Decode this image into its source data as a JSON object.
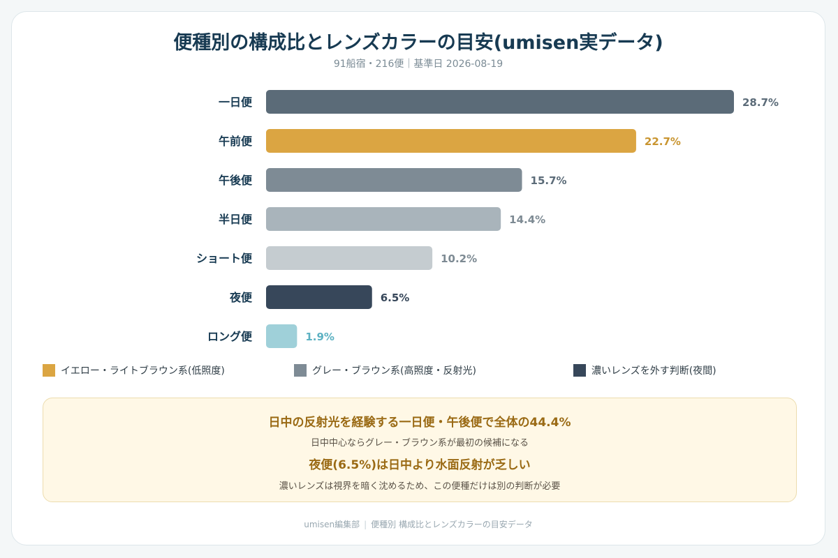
{
  "header": {
    "title": "便種別の構成比とレンズカラーの目安(umisen実データ)",
    "subtitle": "91船宿・216便｜基準日 2026-08-19"
  },
  "chart_data": {
    "type": "bar",
    "orientation": "horizontal",
    "categories": [
      "一日便",
      "午前便",
      "午後便",
      "半日便",
      "ショート便",
      "夜便",
      "ロング便"
    ],
    "values": [
      28.7,
      22.7,
      15.7,
      14.4,
      10.2,
      6.5,
      1.9
    ],
    "value_labels": [
      "28.7%",
      "22.7%",
      "15.7%",
      "14.4%",
      "10.2%",
      "6.5%",
      "1.9%"
    ],
    "bar_colors": [
      "#5b6b78",
      "#dba542",
      "#7e8b95",
      "#a9b4bb",
      "#c5ccd0",
      "#37475a",
      "#9fd0d9"
    ],
    "label_colors": [
      "#5b6b78",
      "#c99530",
      "#5b6b78",
      "#7d8a93",
      "#7d8a93",
      "#37475a",
      "#5cb1c2"
    ],
    "xlim": [
      0,
      28.7
    ],
    "grid": false
  },
  "legend": [
    {
      "label": "イエロー・ライトブラウン系(低照度)",
      "color": "#dba542"
    },
    {
      "label": "グレー・ブラウン系(高照度・反射光)",
      "color": "#7e8b95"
    },
    {
      "label": "濃いレンズを外す判断(夜間)",
      "color": "#37475a"
    }
  ],
  "callout": {
    "heading1": "日中の反射光を経験する一日便・午後便で全体の44.4%",
    "text1": "日中中心ならグレー・ブラウン系が最初の候補になる",
    "heading2": "夜便(6.5%)は日中より水面反射が乏しい",
    "text2": "濃いレンズは視界を暗く沈めるため、この便種だけは別の判断が必要"
  },
  "footer": {
    "source": "umisen編集部",
    "separator": "|",
    "description": "便種別 構成比とレンズカラーの目安データ"
  }
}
